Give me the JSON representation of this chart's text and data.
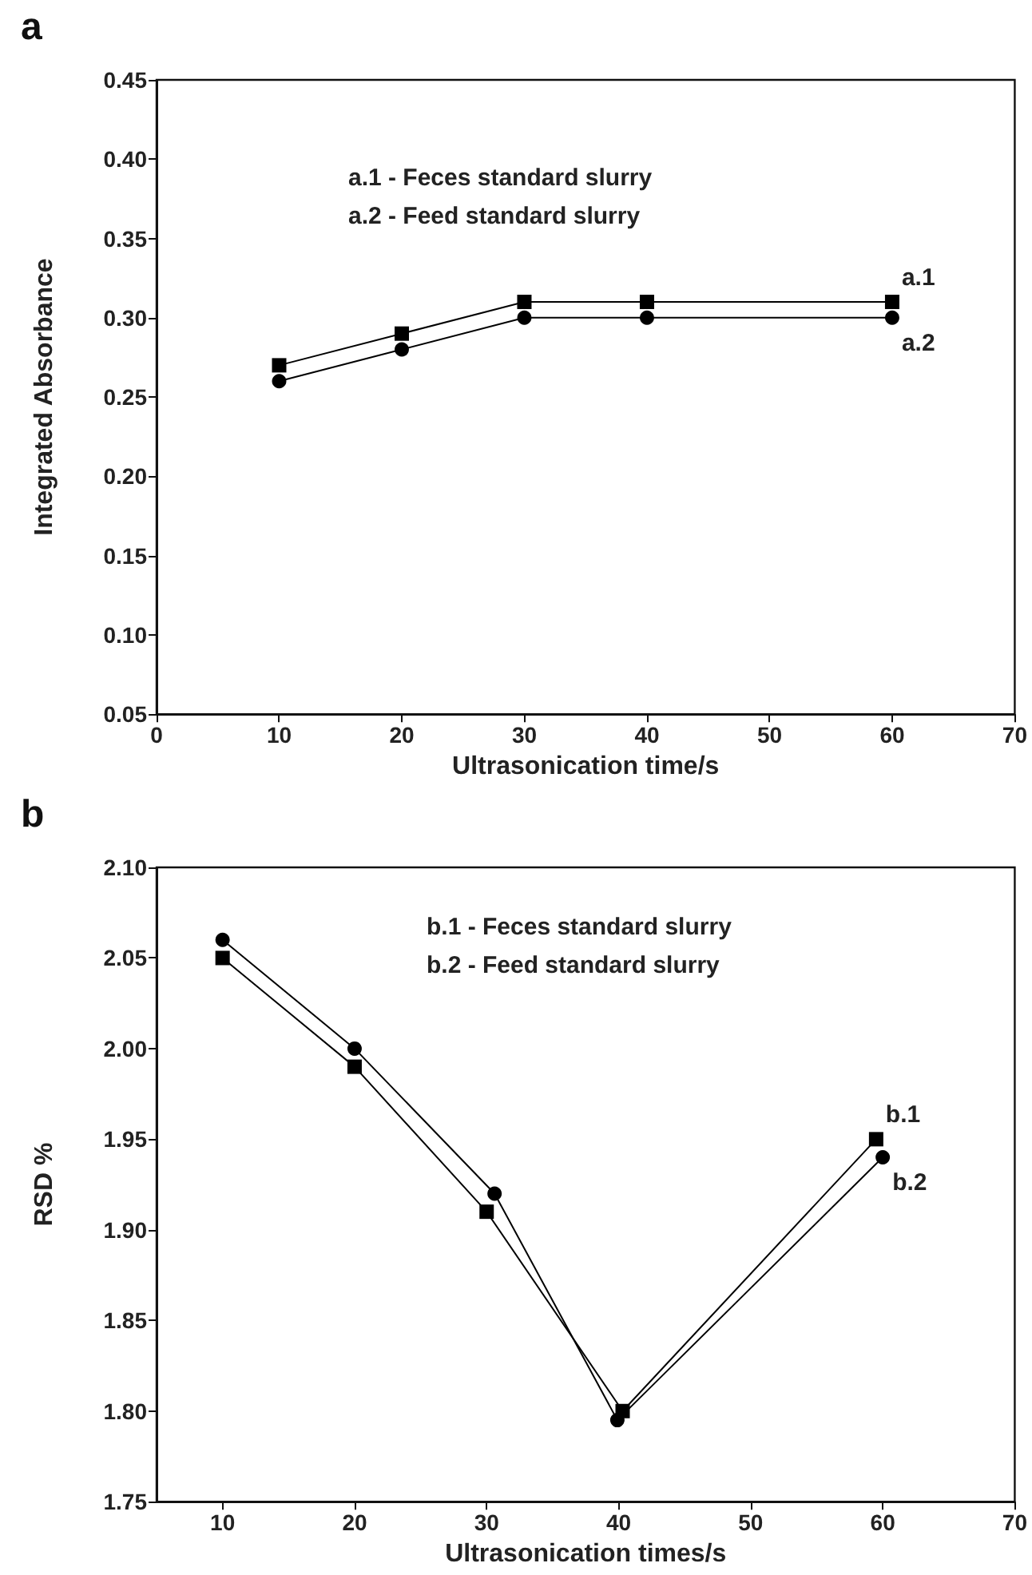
{
  "chart_data": [
    {
      "type": "line",
      "title": "a",
      "xlabel": "Ultrasonication time/s",
      "ylabel": "Integrated Absorbance",
      "xlim": [
        0,
        70
      ],
      "xticks": [
        0,
        10,
        20,
        30,
        40,
        50,
        60,
        70
      ],
      "ylim": [
        0.05,
        0.45
      ],
      "yticks": [
        0.05,
        {
          "value": 0.1,
          "label": "0.10"
        },
        0.15,
        {
          "value": 0.2,
          "label": "0.20"
        },
        0.25,
        {
          "value": 0.3,
          "label": "0.30"
        },
        0.35,
        {
          "value": 0.4,
          "label": "0.40"
        },
        0.45
      ],
      "grid": false,
      "legend": false,
      "line_style": "solid",
      "annotations": [
        "a.1 - Feces standard slurry",
        "a.2 - Feed standard slurry"
      ],
      "series": [
        {
          "name": "a.1",
          "color": "#000000",
          "marker": "square",
          "x": [
            10,
            20,
            30,
            40,
            60
          ],
          "values": [
            0.27,
            0.29,
            0.31,
            0.31,
            0.31
          ]
        },
        {
          "name": "a.2",
          "color": "#000000",
          "marker": "circle",
          "x": [
            10,
            20,
            30,
            40,
            60
          ],
          "values": [
            0.26,
            0.28,
            0.3,
            0.3,
            0.3
          ]
        }
      ]
    },
    {
      "type": "line",
      "title": "b",
      "xlabel": "Ultrasonication times/s",
      "ylabel": "RSD %",
      "xlim": [
        5,
        70
      ],
      "xticks": [
        10,
        20,
        30,
        40,
        50,
        60,
        70
      ],
      "ylim": [
        1.75,
        2.1
      ],
      "yticks": [
        1.75,
        {
          "value": 1.8,
          "label": "1.80"
        },
        1.85,
        {
          "value": 1.9,
          "label": "1.90"
        },
        1.95,
        {
          "value": 2.0,
          "label": "2.00"
        },
        2.05,
        {
          "value": 2.1,
          "label": "2.10"
        }
      ],
      "grid": false,
      "legend": false,
      "line_style": "solid",
      "annotations": [
        "b.1 - Feces standard slurry",
        "b.2 - Feed standard slurry"
      ],
      "series": [
        {
          "name": "b.1",
          "color": "#000000",
          "marker": "square",
          "x": [
            10,
            20,
            30,
            40.3,
            59.5
          ],
          "values": [
            2.05,
            1.99,
            1.91,
            1.8,
            1.95
          ]
        },
        {
          "name": "b.2",
          "color": "#000000",
          "marker": "circle",
          "x": [
            10,
            20,
            30.6,
            39.9,
            60
          ],
          "values": [
            2.06,
            2.0,
            1.92,
            1.795,
            1.94
          ]
        }
      ]
    }
  ]
}
